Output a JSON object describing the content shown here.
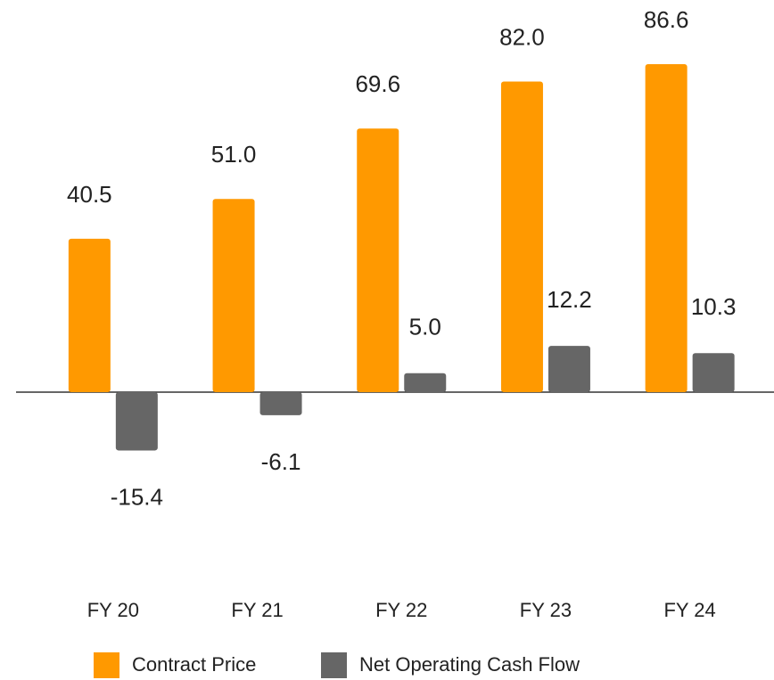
{
  "chart_data": {
    "type": "bar",
    "categories": [
      "FY 20",
      "FY 21",
      "FY 22",
      "FY 23",
      "FY 24"
    ],
    "series": [
      {
        "name": "Contract Price",
        "color": "#ff9900",
        "values": [
          40.5,
          51.0,
          69.6,
          82.0,
          86.6
        ],
        "value_labels": [
          "40.5",
          "51.0",
          "69.6",
          "82.0",
          "86.6"
        ]
      },
      {
        "name": "Net Operating Cash Flow",
        "color": "#666666",
        "values": [
          -15.4,
          -6.1,
          5.0,
          12.2,
          10.3
        ],
        "value_labels": [
          "-15.4",
          "-6.1",
          "5.0",
          "12.2",
          "10.3"
        ]
      }
    ],
    "legend": "bottom"
  }
}
